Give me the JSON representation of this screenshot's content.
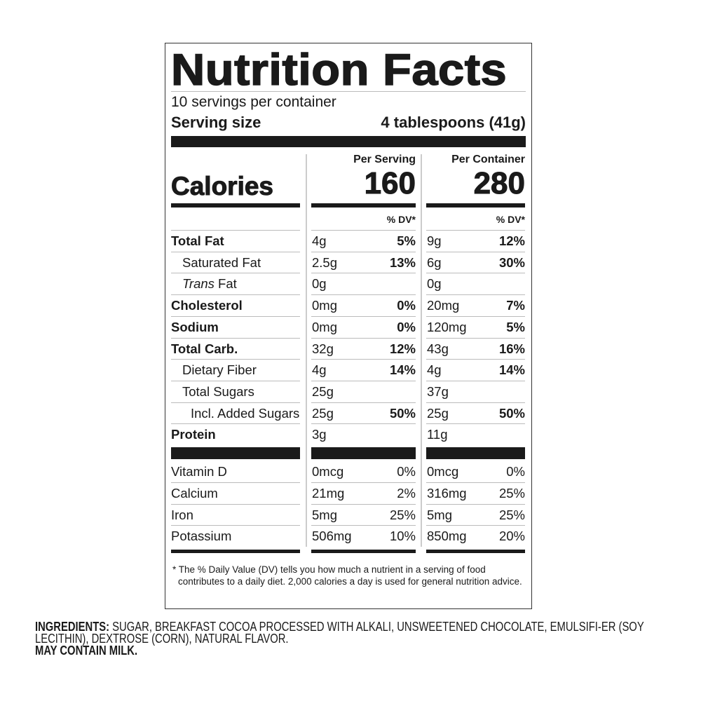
{
  "title": "Nutrition Facts",
  "servings_per_container": "10 servings per container",
  "serving_size_label": "Serving size",
  "serving_size_value": "4 tablespoons (41g)",
  "calories_label": "Calories",
  "per_serving_label": "Per Serving",
  "per_container_label": "Per Container",
  "calories_per_serving": "160",
  "calories_per_container": "280",
  "dv_label": "% DV*",
  "nutrients": [
    {
      "name": "Total Fat",
      "name_italic": "",
      "bold": true,
      "indent": 0,
      "s_amt": "4g",
      "s_dv": "5%",
      "c_amt": "9g",
      "c_dv": "12%"
    },
    {
      "name": "Saturated Fat",
      "name_italic": "",
      "bold": false,
      "indent": 1,
      "s_amt": "2.5g",
      "s_dv": "13%",
      "c_amt": "6g",
      "c_dv": "30%"
    },
    {
      "name": " Fat",
      "name_italic": "Trans",
      "bold": false,
      "indent": 1,
      "s_amt": "0g",
      "s_dv": "",
      "c_amt": "0g",
      "c_dv": ""
    },
    {
      "name": "Cholesterol",
      "name_italic": "",
      "bold": true,
      "indent": 0,
      "s_amt": "0mg",
      "s_dv": "0%",
      "c_amt": "20mg",
      "c_dv": "7%"
    },
    {
      "name": "Sodium",
      "name_italic": "",
      "bold": true,
      "indent": 0,
      "s_amt": "0mg",
      "s_dv": "0%",
      "c_amt": "120mg",
      "c_dv": "5%"
    },
    {
      "name": "Total Carb.",
      "name_italic": "",
      "bold": true,
      "indent": 0,
      "s_amt": "32g",
      "s_dv": "12%",
      "c_amt": "43g",
      "c_dv": "16%"
    },
    {
      "name": "Dietary Fiber",
      "name_italic": "",
      "bold": false,
      "indent": 1,
      "s_amt": "4g",
      "s_dv": "14%",
      "c_amt": "4g",
      "c_dv": "14%"
    },
    {
      "name": "Total Sugars",
      "name_italic": "",
      "bold": false,
      "indent": 1,
      "s_amt": "25g",
      "s_dv": "",
      "c_amt": "37g",
      "c_dv": ""
    },
    {
      "name": "Incl. Added Sugars",
      "name_italic": "",
      "bold": false,
      "indent": 2,
      "s_amt": "25g",
      "s_dv": "50%",
      "c_amt": "25g",
      "c_dv": "50%"
    },
    {
      "name": "Protein",
      "name_italic": "",
      "bold": true,
      "indent": 0,
      "s_amt": "3g",
      "s_dv": "",
      "c_amt": "11g",
      "c_dv": ""
    }
  ],
  "vitamins": [
    {
      "name": "Vitamin D",
      "s_amt": "0mcg",
      "s_dv": "0%",
      "c_amt": "0mcg",
      "c_dv": "0%"
    },
    {
      "name": "Calcium",
      "s_amt": "21mg",
      "s_dv": "2%",
      "c_amt": "316mg",
      "c_dv": "25%"
    },
    {
      "name": "Iron",
      "s_amt": "5mg",
      "s_dv": "25%",
      "c_amt": "5mg",
      "c_dv": "25%"
    },
    {
      "name": "Potassium",
      "s_amt": "506mg",
      "s_dv": "10%",
      "c_amt": "850mg",
      "c_dv": "20%"
    }
  ],
  "footnote": "* The % Daily Value (DV) tells you how much a nutrient in a serving of food contributes to a daily diet. 2,000 calories a day is used for general nutrition advice.",
  "ingredients_label": "INGREDIENTS:",
  "ingredients_text": " SUGAR, BREAKFAST COCOA PROCESSED WITH ALKALI, UNSWEETENED CHOCOLATE, EMULSIFI-ER (SOY LECITHIN), DEXTROSE (CORN), NATURAL FLAVOR.",
  "allergen": "MAY CONTAIN MILK."
}
